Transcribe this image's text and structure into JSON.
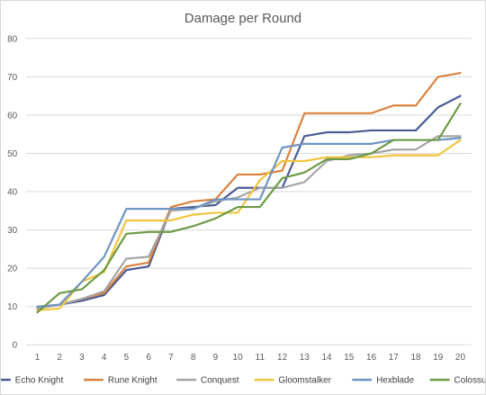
{
  "chart_data": {
    "type": "line",
    "title": "Damage per Round",
    "xlabel": "",
    "ylabel": "",
    "x": [
      1,
      2,
      3,
      4,
      5,
      6,
      7,
      8,
      9,
      10,
      11,
      12,
      13,
      14,
      15,
      16,
      17,
      18,
      19,
      20
    ],
    "ylim": [
      0,
      80
    ],
    "yticks": [
      0,
      10,
      20,
      30,
      40,
      50,
      60,
      70,
      80
    ],
    "grid": true,
    "legend": "bottom",
    "series": [
      {
        "name": "Echo Knight",
        "color": "#4a5a94",
        "values": [
          9.5,
          10.5,
          11.5,
          13,
          19.5,
          20.5,
          35.5,
          36,
          36.5,
          41,
          41,
          41,
          54.5,
          55.5,
          55.5,
          56,
          56,
          56,
          62,
          65
        ]
      },
      {
        "name": "Rune Knight",
        "color": "#d9823f",
        "values": [
          9.5,
          10.5,
          12,
          13.5,
          20.5,
          21.5,
          36,
          37.5,
          38,
          44.5,
          44.5,
          45.5,
          60.5,
          60.5,
          60.5,
          60.5,
          62.5,
          62.5,
          70,
          71
        ]
      },
      {
        "name": "Conquest",
        "color": "#a5a5a5",
        "values": [
          9.5,
          10.5,
          12,
          14,
          22.5,
          23,
          35,
          35.5,
          37.5,
          38.5,
          41,
          41,
          42.5,
          48,
          49.5,
          50,
          51,
          51,
          54.5,
          54.5
        ]
      },
      {
        "name": "Gloomstalker",
        "color": "#f2c43d",
        "values": [
          9,
          9.5,
          16.5,
          19,
          32.5,
          32.5,
          32.5,
          34,
          34.5,
          34.5,
          43,
          48,
          48,
          49,
          49,
          49,
          49.5,
          49.5,
          49.5,
          53.5
        ]
      },
      {
        "name": "Hexblade",
        "color": "#6e94c4",
        "values": [
          10,
          10.5,
          16.5,
          23,
          35.5,
          35.5,
          35.5,
          35.5,
          38,
          38,
          38,
          51.5,
          52.5,
          52.5,
          52.5,
          52.5,
          53.5,
          53.5,
          53.5,
          54
        ]
      },
      {
        "name": "Colossus",
        "color": "#6c9a45",
        "values": [
          8.5,
          13.5,
          14.5,
          19.5,
          29,
          29.5,
          29.5,
          31,
          33,
          36,
          36,
          43.5,
          45,
          48.5,
          48.5,
          50,
          53.5,
          53.5,
          53.5,
          63
        ]
      }
    ]
  }
}
